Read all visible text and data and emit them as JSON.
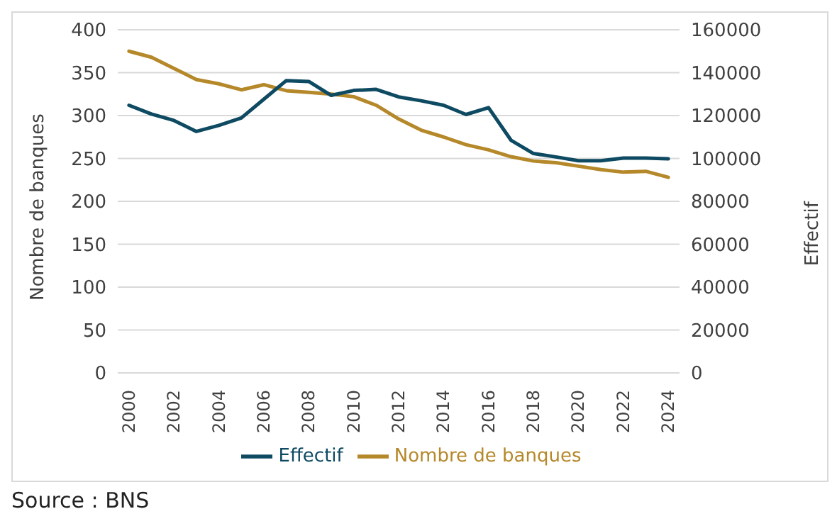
{
  "chart_data": {
    "type": "line",
    "x": [
      2000,
      2001,
      2002,
      2003,
      2004,
      2005,
      2006,
      2007,
      2008,
      2009,
      2010,
      2011,
      2012,
      2013,
      2014,
      2015,
      2016,
      2017,
      2018,
      2019,
      2020,
      2021,
      2022,
      2023,
      2024
    ],
    "series": [
      {
        "name": "Nombre de banques",
        "color": "#b5882a",
        "values": [
          375,
          368,
          355,
          342,
          337,
          330,
          336,
          329,
          327,
          325,
          322,
          312,
          296,
          283,
          275,
          266,
          260,
          252,
          247,
          245,
          241,
          237,
          234,
          235,
          228
        ]
      },
      {
        "name": "Effectif",
        "color": "#0e4a62",
        "axis": "y2",
        "values": [
          124800,
          120700,
          117700,
          112600,
          115400,
          118900,
          127600,
          136300,
          135900,
          129400,
          131700,
          132200,
          128700,
          126900,
          124800,
          120500,
          123700,
          108500,
          102300,
          100700,
          98900,
          98900,
          100200,
          100200,
          99800
        ]
      }
    ],
    "xlim": [
      1999.5,
      2024.5
    ],
    "xticks": [
      2000,
      2002,
      2004,
      2006,
      2008,
      2010,
      2012,
      2014,
      2016,
      2018,
      2020,
      2022,
      2024
    ],
    "ylim": [
      0,
      400
    ],
    "yticks": [
      0,
      50,
      100,
      150,
      200,
      250,
      300,
      350,
      400
    ],
    "y2lim": [
      0,
      160000
    ],
    "y2ticks": [
      0,
      20000,
      40000,
      60000,
      80000,
      100000,
      120000,
      140000,
      160000
    ],
    "ylabel": "Nombre de banques",
    "y2label": "Effectif",
    "grid": "y",
    "legend": "bottom",
    "marker": "none",
    "line_style": "solid",
    "annotations": [
      "Source : BNS"
    ]
  }
}
